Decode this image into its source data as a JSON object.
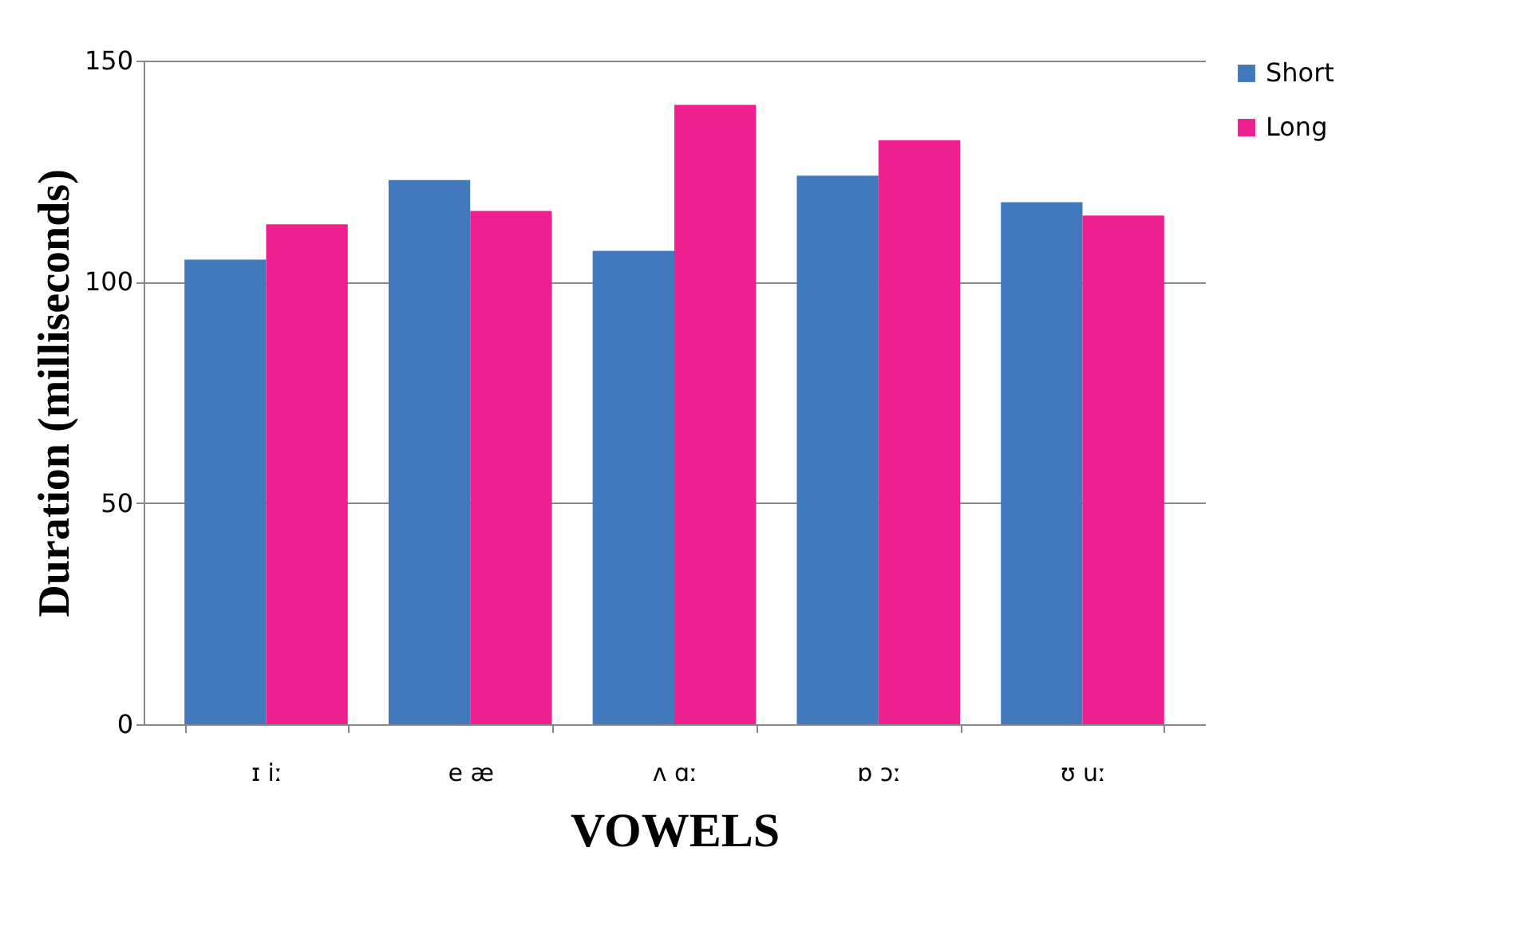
{
  "chart_data": {
    "type": "bar",
    "xlabel": "VOWELS",
    "ylabel": "Duration (milliseconds)",
    "categories": [
      "ɪ    iː",
      "e    æ",
      "ʌ    ɑː",
      "ɒ   ɔː",
      "ʊ   uː"
    ],
    "series": [
      {
        "name": "Short",
        "color": "#4279bd",
        "values": [
          105,
          123,
          107,
          124,
          118
        ]
      },
      {
        "name": "Long",
        "color": "#ee2090",
        "values": [
          113,
          116,
          140,
          132,
          115
        ]
      }
    ],
    "ylim": [
      0,
      150
    ],
    "yticks": [
      0,
      50,
      100,
      150
    ],
    "grid": "y",
    "legend": "right"
  }
}
